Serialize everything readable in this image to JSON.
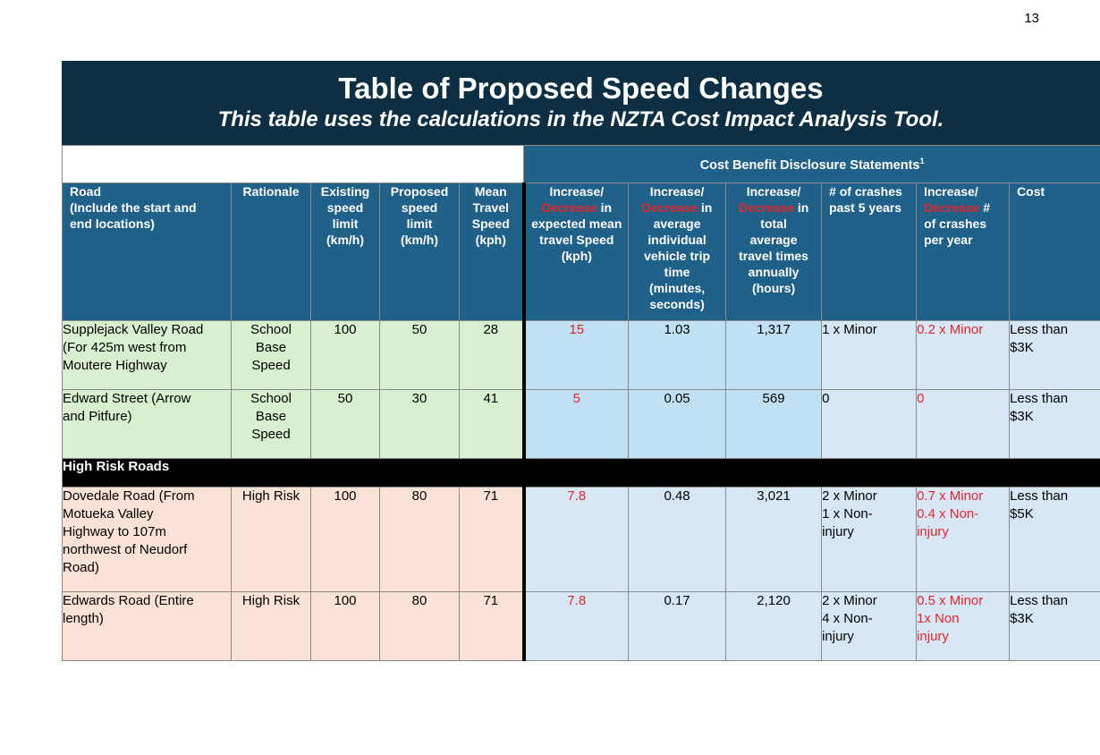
{
  "page_number": "13",
  "title": "Table of Proposed Speed Changes",
  "subtitle": "This table uses the calculations in the NZTA Cost Impact Analysis Tool.",
  "group_header": {
    "text": "Cost Benefit Disclosure Statements",
    "footnote": "1"
  },
  "columns": {
    "road": [
      "Road",
      "(Include the start and",
      "end locations)"
    ],
    "rationale": "Rationale",
    "existing": [
      "Existing",
      "speed",
      "limit",
      "(km/h)"
    ],
    "proposed": [
      "Proposed",
      "speed",
      "limit",
      "(km/h)"
    ],
    "mean": [
      "Mean",
      "Travel",
      "Speed",
      "(kph)"
    ],
    "inc_speed": {
      "a": "Increase/",
      "red": "Decrease",
      "b": " in",
      "rest": [
        "expected mean",
        "travel Speed",
        "(kph)"
      ]
    },
    "inc_trip": {
      "a": "Increase/",
      "red": "Decrease",
      "b": " in",
      "rest": [
        "average",
        "individual",
        "vehicle trip",
        "time",
        "(minutes,",
        "seconds)"
      ]
    },
    "inc_total": {
      "a": "Increase/",
      "red": "Decrease",
      "b": " in",
      "rest": [
        "total",
        "average",
        "travel times",
        "annually",
        "(hours)"
      ]
    },
    "crashes": [
      "# of crashes",
      "past 5 years"
    ],
    "inc_crashes": {
      "a": "Increase/",
      "red": "Decrease",
      "b": " #",
      "rest": [
        "of crashes",
        "per year"
      ]
    },
    "cost": "Cost"
  },
  "rows": [
    {
      "road": [
        "Supplejack Valley Road",
        "(For 425m west from",
        "Moutere Highway"
      ],
      "rationale": [
        "School",
        "Base",
        "Speed"
      ],
      "existing": "100",
      "proposed": "50",
      "mean": "28",
      "inc_speed": "15",
      "inc_trip": "1.03",
      "inc_total": "1,317",
      "crashes": [
        "1 x Minor"
      ],
      "inc_crashes": [
        "0.2 x Minor"
      ],
      "cost": [
        "Less than",
        "$3K"
      ]
    },
    {
      "road": [
        "Edward Street (Arrow",
        "and Pitfure)"
      ],
      "rationale": [
        "School",
        "Base",
        "Speed"
      ],
      "existing": "50",
      "proposed": "30",
      "mean": "41",
      "inc_speed": "5",
      "inc_trip": "0.05",
      "inc_total": "569",
      "crashes": [
        "0"
      ],
      "inc_crashes": [
        "0"
      ],
      "cost": [
        "Less than",
        "$3K"
      ]
    },
    {
      "road": [
        "Dovedale Road (From",
        "Motueka Valley",
        "Highway to 107m",
        "northwest of Neudorf",
        "Road)"
      ],
      "rationale": [
        "High Risk"
      ],
      "existing": "100",
      "proposed": "80",
      "mean": "71",
      "inc_speed": "7.8",
      "inc_trip": "0.48",
      "inc_total": "3,021",
      "crashes": [
        "2 x Minor",
        "1 x Non-",
        "injury"
      ],
      "inc_crashes": [
        "0.7 x Minor",
        "0.4 x Non-",
        "injury"
      ],
      "cost": [
        "Less than",
        "$5K"
      ]
    },
    {
      "road": [
        "Edwards Road (Entire",
        "length)"
      ],
      "rationale": [
        "High Risk"
      ],
      "existing": "100",
      "proposed": "80",
      "mean": "71",
      "inc_speed": "7.8",
      "inc_trip": "0.17",
      "inc_total": "2,120",
      "crashes": [
        "2 x Minor",
        "4 x Non-",
        "injury"
      ],
      "inc_crashes": [
        "0.5 x Minor",
        "1x Non",
        "injury"
      ],
      "cost": [
        "Less than",
        "$3K"
      ]
    }
  ],
  "section_label": "High Risk Roads",
  "colors": {
    "title_bg": "#0c2f44",
    "header_bg": "#1f6189",
    "school_bg": "#d9f0d0",
    "highrisk_bg": "#fae3d6",
    "cb_cell_bg": "#d8e7f6",
    "cb_highlight_bg": "#bfe1f3",
    "red_text": "#e3262b"
  }
}
